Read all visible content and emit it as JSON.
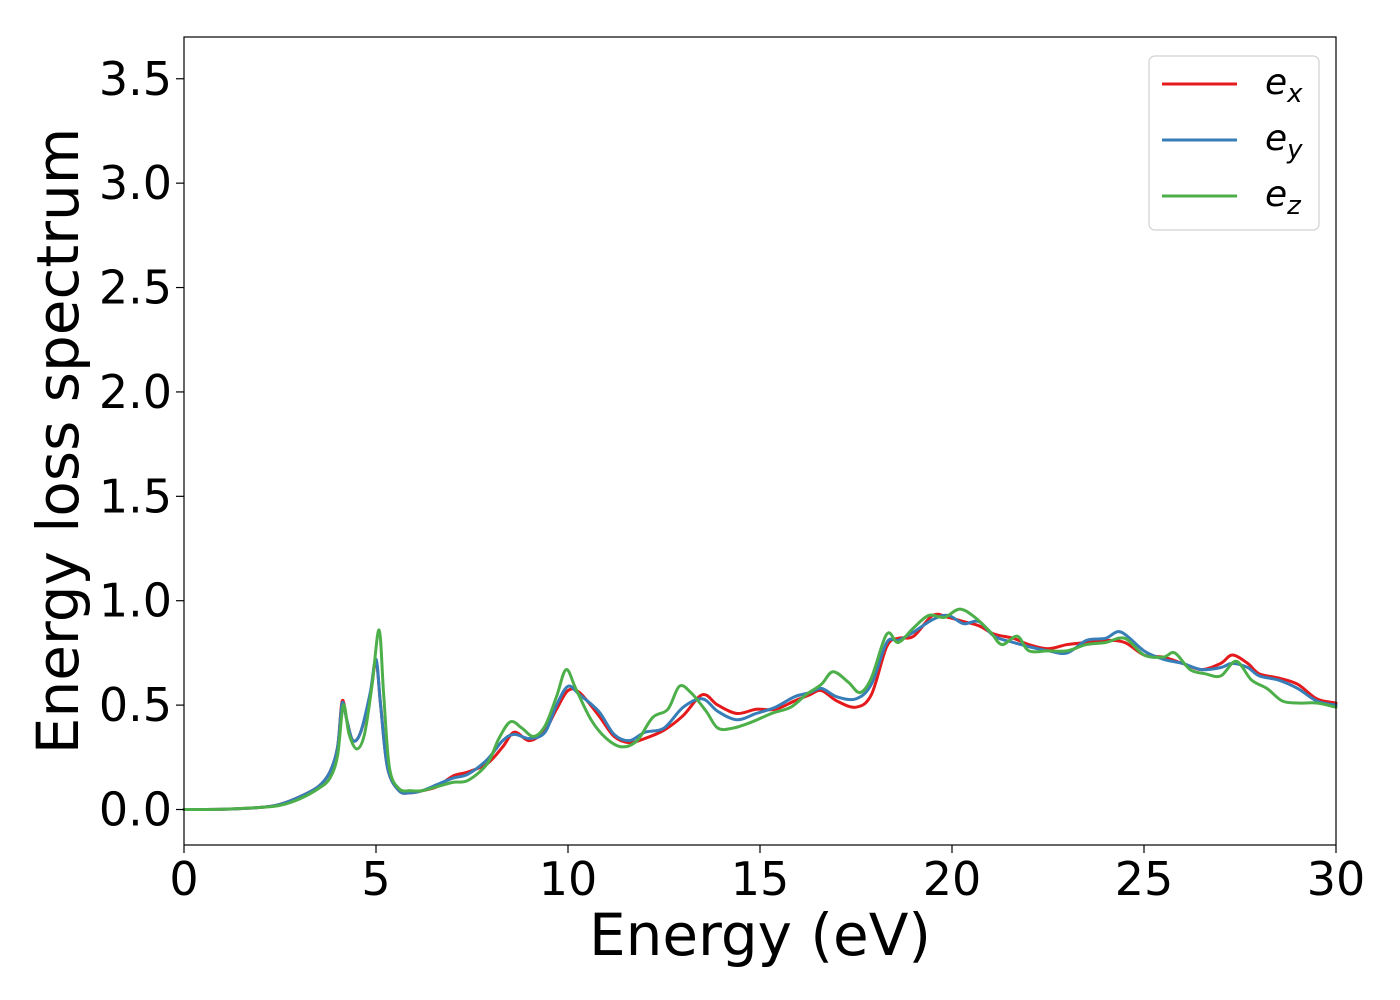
{
  "chart_data": {
    "type": "line",
    "title": "",
    "xlabel": "Energy (eV)",
    "ylabel": "Energy loss spectrum",
    "xlim": [
      0,
      30
    ],
    "ylim": [
      -0.17,
      3.7
    ],
    "x_ticks": [
      0,
      5,
      10,
      15,
      20,
      25,
      30
    ],
    "y_ticks": [
      0.0,
      0.5,
      1.0,
      1.5,
      2.0,
      2.5,
      3.0,
      3.5
    ],
    "x_tick_labels": [
      "0",
      "5",
      "10",
      "15",
      "20",
      "25",
      "30"
    ],
    "y_tick_labels": [
      "0.0",
      "0.5",
      "1.0",
      "1.5",
      "2.0",
      "2.5",
      "3.0",
      "3.5"
    ],
    "grid": false,
    "legend_position": "top-right",
    "series": [
      {
        "name": "e_x",
        "label_base": "e",
        "label_sub": "x",
        "color": "#e41a1c",
        "points": [
          [
            0,
            0
          ],
          [
            1,
            0.001
          ],
          [
            2,
            0.01
          ],
          [
            2.5,
            0.025
          ],
          [
            3,
            0.06
          ],
          [
            3.5,
            0.11
          ],
          [
            3.8,
            0.18
          ],
          [
            4.0,
            0.3
          ],
          [
            4.12,
            0.52
          ],
          [
            4.25,
            0.42
          ],
          [
            4.4,
            0.33
          ],
          [
            4.6,
            0.37
          ],
          [
            4.85,
            0.55
          ],
          [
            5.0,
            0.71
          ],
          [
            5.12,
            0.5
          ],
          [
            5.3,
            0.2
          ],
          [
            5.6,
            0.09
          ],
          [
            5.9,
            0.08
          ],
          [
            6.2,
            0.09
          ],
          [
            6.6,
            0.11
          ],
          [
            7.0,
            0.16
          ],
          [
            7.4,
            0.18
          ],
          [
            7.9,
            0.22
          ],
          [
            8.3,
            0.3
          ],
          [
            8.6,
            0.37
          ],
          [
            9.0,
            0.33
          ],
          [
            9.4,
            0.38
          ],
          [
            9.7,
            0.48
          ],
          [
            10.0,
            0.57
          ],
          [
            10.3,
            0.56
          ],
          [
            10.8,
            0.45
          ],
          [
            11.2,
            0.35
          ],
          [
            11.6,
            0.32
          ],
          [
            12.0,
            0.34
          ],
          [
            12.5,
            0.38
          ],
          [
            13.0,
            0.45
          ],
          [
            13.5,
            0.55
          ],
          [
            13.9,
            0.5
          ],
          [
            14.4,
            0.46
          ],
          [
            14.9,
            0.48
          ],
          [
            15.4,
            0.48
          ],
          [
            15.9,
            0.52
          ],
          [
            16.3,
            0.55
          ],
          [
            16.6,
            0.57
          ],
          [
            17.0,
            0.52
          ],
          [
            17.5,
            0.49
          ],
          [
            17.9,
            0.55
          ],
          [
            18.3,
            0.78
          ],
          [
            18.6,
            0.82
          ],
          [
            19.0,
            0.83
          ],
          [
            19.5,
            0.93
          ],
          [
            19.9,
            0.92
          ],
          [
            20.3,
            0.9
          ],
          [
            20.7,
            0.88
          ],
          [
            21.1,
            0.84
          ],
          [
            21.6,
            0.82
          ],
          [
            22.0,
            0.79
          ],
          [
            22.5,
            0.77
          ],
          [
            23.0,
            0.79
          ],
          [
            23.5,
            0.8
          ],
          [
            24.0,
            0.81
          ],
          [
            24.5,
            0.8
          ],
          [
            25.0,
            0.74
          ],
          [
            25.5,
            0.73
          ],
          [
            26.0,
            0.7
          ],
          [
            26.5,
            0.67
          ],
          [
            27.0,
            0.7
          ],
          [
            27.3,
            0.74
          ],
          [
            27.7,
            0.7
          ],
          [
            28.0,
            0.65
          ],
          [
            28.5,
            0.63
          ],
          [
            29.0,
            0.6
          ],
          [
            29.5,
            0.53
          ],
          [
            30.0,
            0.51
          ]
        ]
      },
      {
        "name": "e_y",
        "label_base": "e",
        "label_sub": "y",
        "color": "#377eb8",
        "points": [
          [
            0,
            0
          ],
          [
            1,
            0.001
          ],
          [
            2,
            0.01
          ],
          [
            2.5,
            0.025
          ],
          [
            3,
            0.06
          ],
          [
            3.5,
            0.11
          ],
          [
            3.8,
            0.18
          ],
          [
            4.0,
            0.3
          ],
          [
            4.12,
            0.51
          ],
          [
            4.25,
            0.42
          ],
          [
            4.4,
            0.33
          ],
          [
            4.6,
            0.37
          ],
          [
            4.85,
            0.56
          ],
          [
            5.0,
            0.72
          ],
          [
            5.12,
            0.5
          ],
          [
            5.3,
            0.2
          ],
          [
            5.6,
            0.09
          ],
          [
            5.9,
            0.08
          ],
          [
            6.2,
            0.09
          ],
          [
            6.6,
            0.12
          ],
          [
            7.0,
            0.15
          ],
          [
            7.4,
            0.17
          ],
          [
            7.9,
            0.24
          ],
          [
            8.3,
            0.33
          ],
          [
            8.6,
            0.36
          ],
          [
            9.0,
            0.34
          ],
          [
            9.4,
            0.37
          ],
          [
            9.7,
            0.5
          ],
          [
            10.0,
            0.59
          ],
          [
            10.3,
            0.55
          ],
          [
            10.8,
            0.47
          ],
          [
            11.2,
            0.36
          ],
          [
            11.6,
            0.33
          ],
          [
            12.0,
            0.37
          ],
          [
            12.5,
            0.39
          ],
          [
            13.0,
            0.49
          ],
          [
            13.5,
            0.53
          ],
          [
            13.9,
            0.47
          ],
          [
            14.4,
            0.43
          ],
          [
            14.9,
            0.46
          ],
          [
            15.4,
            0.49
          ],
          [
            15.9,
            0.54
          ],
          [
            16.3,
            0.56
          ],
          [
            16.6,
            0.58
          ],
          [
            17.0,
            0.54
          ],
          [
            17.5,
            0.53
          ],
          [
            17.9,
            0.6
          ],
          [
            18.3,
            0.8
          ],
          [
            18.6,
            0.81
          ],
          [
            19.0,
            0.85
          ],
          [
            19.5,
            0.91
          ],
          [
            19.9,
            0.93
          ],
          [
            20.3,
            0.89
          ],
          [
            20.7,
            0.9
          ],
          [
            21.1,
            0.83
          ],
          [
            21.6,
            0.8
          ],
          [
            22.0,
            0.78
          ],
          [
            22.5,
            0.76
          ],
          [
            23.0,
            0.75
          ],
          [
            23.5,
            0.81
          ],
          [
            24.0,
            0.82
          ],
          [
            24.4,
            0.85
          ],
          [
            25.0,
            0.76
          ],
          [
            25.5,
            0.72
          ],
          [
            26.0,
            0.7
          ],
          [
            26.5,
            0.67
          ],
          [
            27.0,
            0.68
          ],
          [
            27.3,
            0.7
          ],
          [
            27.7,
            0.68
          ],
          [
            28.0,
            0.64
          ],
          [
            28.5,
            0.62
          ],
          [
            29.0,
            0.58
          ],
          [
            29.5,
            0.52
          ],
          [
            30.0,
            0.5
          ]
        ]
      },
      {
        "name": "e_z",
        "label_base": "e",
        "label_sub": "z",
        "color": "#4daf4a",
        "points": [
          [
            0,
            0
          ],
          [
            1,
            0.001
          ],
          [
            2,
            0.01
          ],
          [
            2.5,
            0.02
          ],
          [
            3,
            0.05
          ],
          [
            3.5,
            0.1
          ],
          [
            3.8,
            0.15
          ],
          [
            4.0,
            0.26
          ],
          [
            4.15,
            0.5
          ],
          [
            4.3,
            0.36
          ],
          [
            4.5,
            0.29
          ],
          [
            4.7,
            0.36
          ],
          [
            4.9,
            0.6
          ],
          [
            5.08,
            0.86
          ],
          [
            5.2,
            0.55
          ],
          [
            5.35,
            0.2
          ],
          [
            5.6,
            0.1
          ],
          [
            5.9,
            0.09
          ],
          [
            6.2,
            0.09
          ],
          [
            6.6,
            0.11
          ],
          [
            7.0,
            0.13
          ],
          [
            7.4,
            0.14
          ],
          [
            7.9,
            0.22
          ],
          [
            8.2,
            0.34
          ],
          [
            8.5,
            0.42
          ],
          [
            8.8,
            0.39
          ],
          [
            9.1,
            0.35
          ],
          [
            9.4,
            0.4
          ],
          [
            9.7,
            0.54
          ],
          [
            9.95,
            0.67
          ],
          [
            10.2,
            0.58
          ],
          [
            10.6,
            0.43
          ],
          [
            11.0,
            0.34
          ],
          [
            11.4,
            0.3
          ],
          [
            11.8,
            0.33
          ],
          [
            12.2,
            0.44
          ],
          [
            12.6,
            0.48
          ],
          [
            12.9,
            0.59
          ],
          [
            13.2,
            0.56
          ],
          [
            13.6,
            0.47
          ],
          [
            13.9,
            0.39
          ],
          [
            14.3,
            0.39
          ],
          [
            14.8,
            0.42
          ],
          [
            15.3,
            0.46
          ],
          [
            15.8,
            0.49
          ],
          [
            16.2,
            0.55
          ],
          [
            16.6,
            0.6
          ],
          [
            16.9,
            0.66
          ],
          [
            17.3,
            0.61
          ],
          [
            17.6,
            0.56
          ],
          [
            17.9,
            0.63
          ],
          [
            18.3,
            0.84
          ],
          [
            18.6,
            0.8
          ],
          [
            19.0,
            0.87
          ],
          [
            19.4,
            0.93
          ],
          [
            19.8,
            0.92
          ],
          [
            20.2,
            0.96
          ],
          [
            20.6,
            0.92
          ],
          [
            21.0,
            0.85
          ],
          [
            21.3,
            0.79
          ],
          [
            21.7,
            0.83
          ],
          [
            22.0,
            0.76
          ],
          [
            22.5,
            0.76
          ],
          [
            23.0,
            0.76
          ],
          [
            23.5,
            0.79
          ],
          [
            24.0,
            0.8
          ],
          [
            24.5,
            0.82
          ],
          [
            25.0,
            0.74
          ],
          [
            25.5,
            0.73
          ],
          [
            25.8,
            0.75
          ],
          [
            26.2,
            0.67
          ],
          [
            26.6,
            0.65
          ],
          [
            27.0,
            0.64
          ],
          [
            27.4,
            0.71
          ],
          [
            27.8,
            0.62
          ],
          [
            28.2,
            0.58
          ],
          [
            28.6,
            0.52
          ],
          [
            29.0,
            0.51
          ],
          [
            29.5,
            0.51
          ],
          [
            30.0,
            0.49
          ]
        ]
      }
    ]
  }
}
